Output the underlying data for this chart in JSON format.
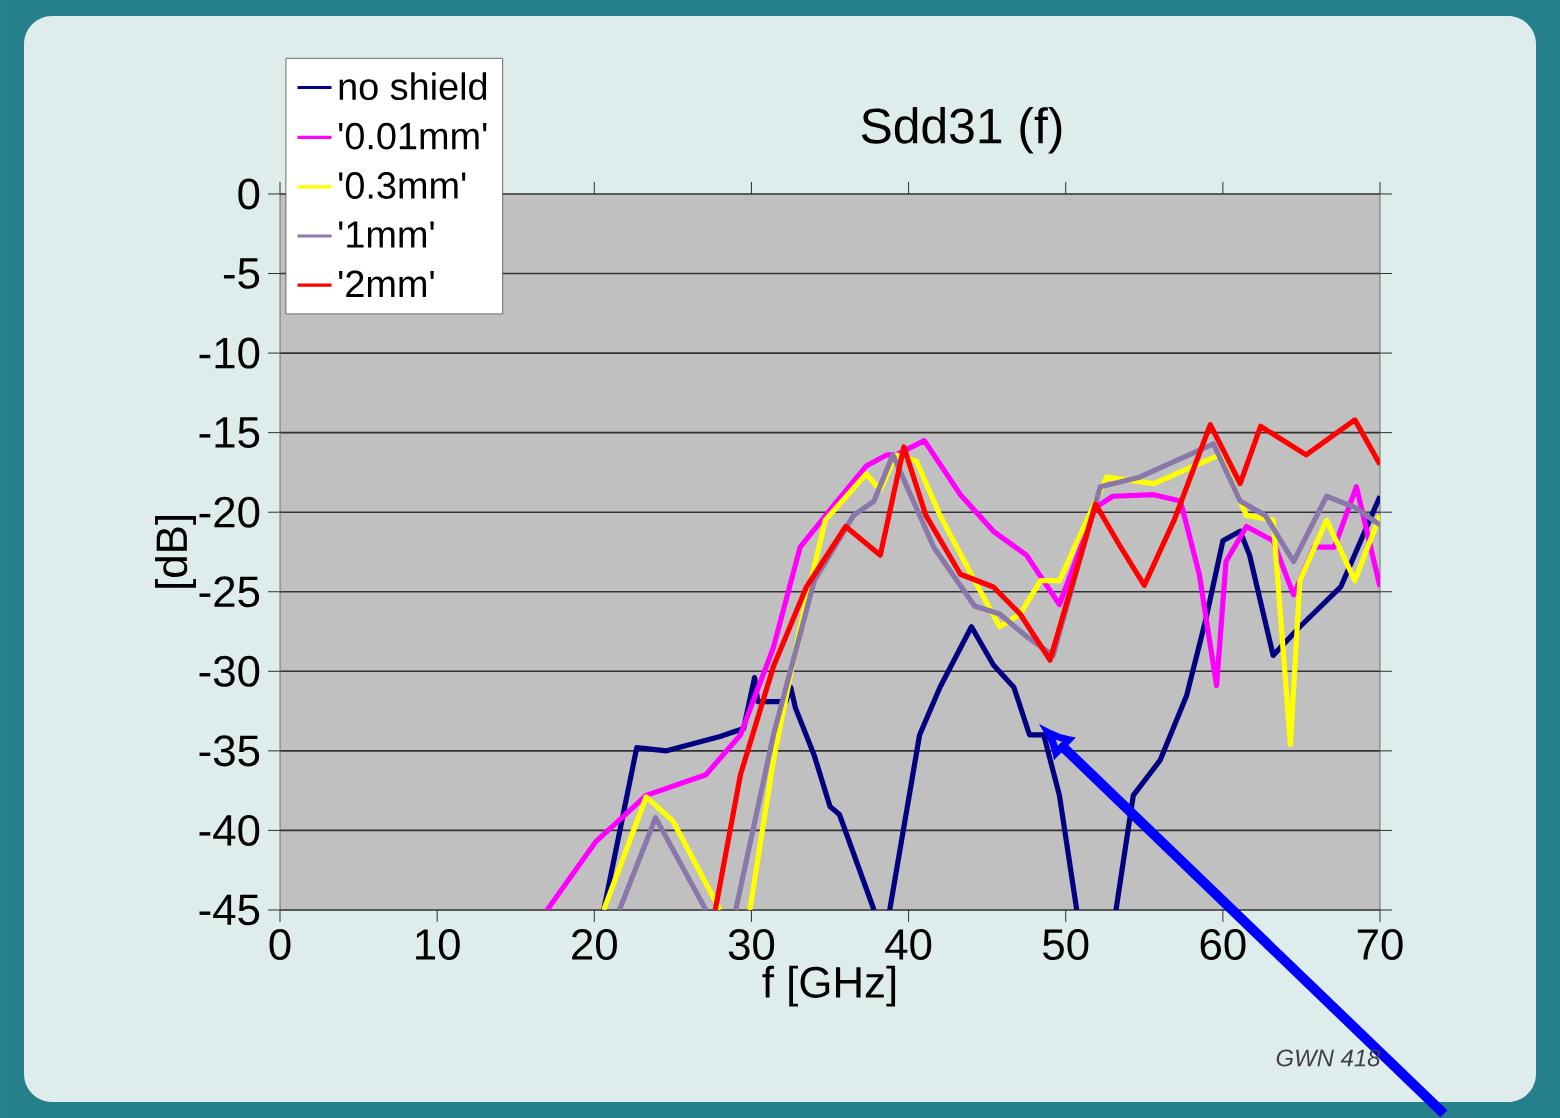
{
  "chart_data": {
    "type": "line",
    "title": "Sdd31 (f)",
    "xlabel": "f [GHz]",
    "ylabel": "[dB]",
    "xlim": [
      0,
      70
    ],
    "xticks": [
      0,
      10,
      20,
      30,
      40,
      50,
      60,
      70
    ],
    "ylim": [
      -45,
      0
    ],
    "yticks": [
      0,
      -5,
      -10,
      -15,
      -20,
      -25,
      -30,
      -35,
      -40,
      -45
    ],
    "grid": "y",
    "legend": "top left",
    "line_style": "solid",
    "marker": "none",
    "annotations": [
      "GWN 418"
    ],
    "series": [
      {
        "name": "no shield",
        "color": "#000080",
        "x": [
          20.6,
          22.7,
          24.6,
          28,
          29.5,
          30.2,
          30.4,
          32.2,
          32.5,
          32.8,
          34,
          35,
          35.6,
          37.8,
          37.9,
          38.8,
          40.7,
          42,
          44,
          45.4,
          46.7,
          47.7,
          48.6,
          49.6,
          50.7,
          50.8,
          53.2,
          54.3,
          56,
          57.7,
          58.9,
          60,
          61.1,
          61.7,
          63.2,
          64.9,
          67.5,
          70
        ],
        "values": [
          -45,
          -34.8,
          -35,
          -34.1,
          -33.6,
          -30.4,
          -31.9,
          -31.9,
          -31,
          -32.3,
          -35.3,
          -38.5,
          -39,
          -45,
          null,
          -45,
          -34,
          -31,
          -27.2,
          -29.6,
          -31,
          -34,
          -34,
          -37.8,
          -45,
          null,
          -45,
          -37.8,
          -35.6,
          -31.5,
          -26.8,
          -21.8,
          -21.2,
          -22.7,
          -29,
          -27.2,
          -24.7,
          -19
        ]
      },
      {
        "name": "'0.01mm'",
        "color": "#ff00ff",
        "x": [
          17,
          20.1,
          23.3,
          27.1,
          29.3,
          31.4,
          33.1,
          35.3,
          37.3,
          38.6,
          39.2,
          41,
          43.3,
          45.4,
          47.5,
          49.6,
          51.9,
          53,
          55.6,
          57.3,
          58.5,
          59.6,
          60.2,
          61.5,
          63.2,
          64.5,
          65.8,
          67.1,
          68.5,
          70
        ],
        "values": [
          -45,
          -40.7,
          -37.8,
          -36.5,
          -34,
          -28.5,
          -22.2,
          -19.5,
          -17.1,
          -16.4,
          -16.4,
          -15.5,
          -18.9,
          -21.2,
          -22.7,
          -25.8,
          -19.7,
          -19,
          -18.9,
          -19.3,
          -23.9,
          -30.9,
          -23.1,
          -20.9,
          -21.8,
          -25.2,
          -22.2,
          -22.2,
          -18.4,
          -24.7
        ]
      },
      {
        "name": "'0.3mm'",
        "color": "#ffff00",
        "x": [
          20.6,
          23.3,
          25,
          28,
          28.1,
          29.9,
          31.4,
          33.1,
          34.7,
          37.3,
          38.2,
          39.2,
          40.5,
          42,
          44.2,
          45.8,
          47.1,
          48.4,
          49.6,
          52.6,
          55.6,
          59.8,
          61.5,
          63.2,
          64.3,
          64.9,
          66.6,
          68.4,
          70
        ],
        "values": [
          -45,
          -37.9,
          -39.4,
          -45,
          null,
          -45,
          -35.6,
          -27.2,
          -20.5,
          -17.6,
          -18.6,
          -16.4,
          -16.8,
          -20.2,
          -24.3,
          -27.2,
          -26.4,
          -24.3,
          -24.3,
          -17.8,
          -18.2,
          -16.4,
          -20.2,
          -20.5,
          -34.6,
          -24.3,
          -20.5,
          -24.3,
          -20.2
        ]
      },
      {
        "name": "'1mm'",
        "color": "#8a78aa",
        "x": [
          21.6,
          23.9,
          27.1,
          27.2,
          29,
          31.4,
          34,
          36.5,
          37.8,
          39,
          41.6,
          44.2,
          45.8,
          47.5,
          49.2,
          52.2,
          54.7,
          59.4,
          61.1,
          62.7,
          64.5,
          66.6,
          68.4,
          70
        ],
        "values": [
          -45,
          -39.2,
          -45,
          null,
          -45,
          -34,
          -24.3,
          -20.2,
          -19.3,
          -16.4,
          -22.2,
          -25.9,
          -26.4,
          -27.8,
          -29,
          -18.4,
          -17.8,
          -15.7,
          -19.3,
          -20.2,
          -23.1,
          -19,
          -19.7,
          -20.8
        ]
      },
      {
        "name": "'2mm'",
        "color": "#ff0000",
        "x": [
          27.7,
          29.3,
          31.4,
          33.5,
          36,
          38.2,
          39.7,
          41.1,
          43.3,
          45.4,
          47.1,
          49,
          51.9,
          53.5,
          55,
          56.9,
          59.2,
          61.1,
          62.4,
          65.3,
          68.4,
          70
        ],
        "values": [
          -45,
          -36.5,
          -29.7,
          -24.7,
          -20.9,
          -22.7,
          -15.9,
          -20.2,
          -23.9,
          -24.7,
          -26.4,
          -29.3,
          -19.5,
          -22.2,
          -24.6,
          -20.5,
          -14.5,
          -18.2,
          -14.6,
          -16.4,
          -14.2,
          -17
        ]
      }
    ]
  }
}
